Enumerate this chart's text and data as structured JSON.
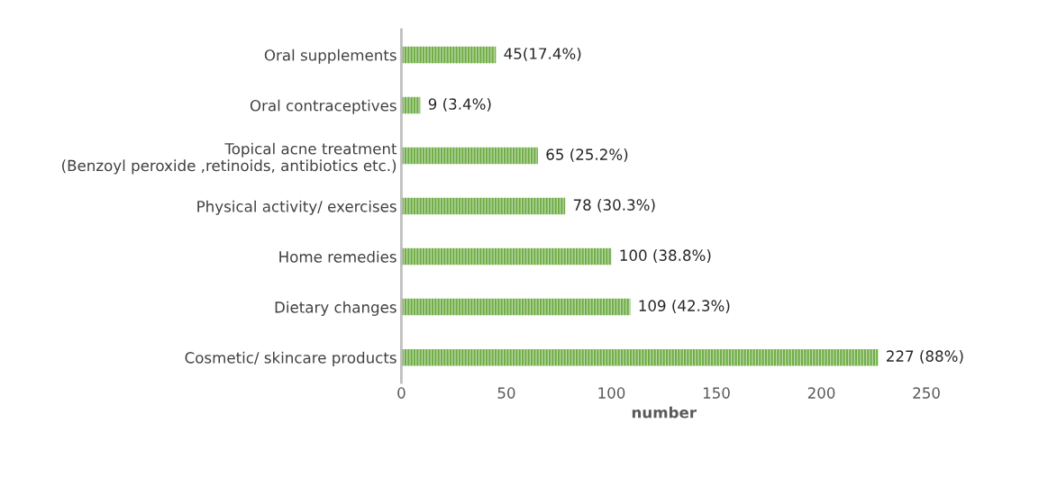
{
  "chart_data": {
    "type": "bar",
    "orientation": "horizontal",
    "xlabel": "number",
    "categories": [
      "Oral supplements",
      "Oral contraceptives",
      "Topical acne treatment\n(Benzoyl peroxide ,retinoids, antibiotics etc.)",
      "Physical activity/ exercises",
      "Home remedies",
      "Dietary changes",
      "Cosmetic/ skincare products"
    ],
    "values": [
      45,
      9,
      65,
      78,
      100,
      109,
      227
    ],
    "value_labels": [
      "45(17.4%)",
      "9 (3.4%)",
      "65 (25.2%)",
      "78 (30.3%)",
      "100 (38.8%)",
      "109 (42.3%)",
      "227 (88%)"
    ],
    "color": "#70ad47",
    "xlim": [
      0,
      250
    ],
    "xticks": [
      0,
      50,
      100,
      150,
      200,
      250
    ],
    "grid": false,
    "legend": false
  }
}
